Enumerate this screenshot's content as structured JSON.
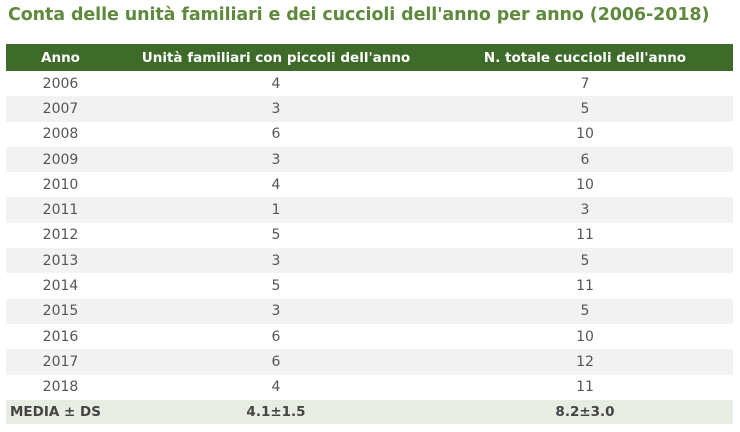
{
  "title": "Conta delle unità familiari e dei cuccioli dell'anno per anno (2006-2018)",
  "table": {
    "headers": [
      "Anno",
      "Unità familiari con piccoli dell'anno",
      "N. totale cuccioli dell'anno"
    ],
    "rows": [
      [
        "2006",
        "4",
        "7"
      ],
      [
        "2007",
        "3",
        "5"
      ],
      [
        "2008",
        "6",
        "10"
      ],
      [
        "2009",
        "3",
        "6"
      ],
      [
        "2010",
        "4",
        "10"
      ],
      [
        "2011",
        "1",
        "3"
      ],
      [
        "2012",
        "5",
        "11"
      ],
      [
        "2013",
        "3",
        "5"
      ],
      [
        "2014",
        "5",
        "11"
      ],
      [
        "2015",
        "3",
        "5"
      ],
      [
        "2016",
        "6",
        "10"
      ],
      [
        "2017",
        "6",
        "12"
      ],
      [
        "2018",
        "4",
        "11"
      ]
    ],
    "footer": [
      "MEDIA ± DS",
      "4.1±1.5",
      "8.2±3.0"
    ]
  }
}
